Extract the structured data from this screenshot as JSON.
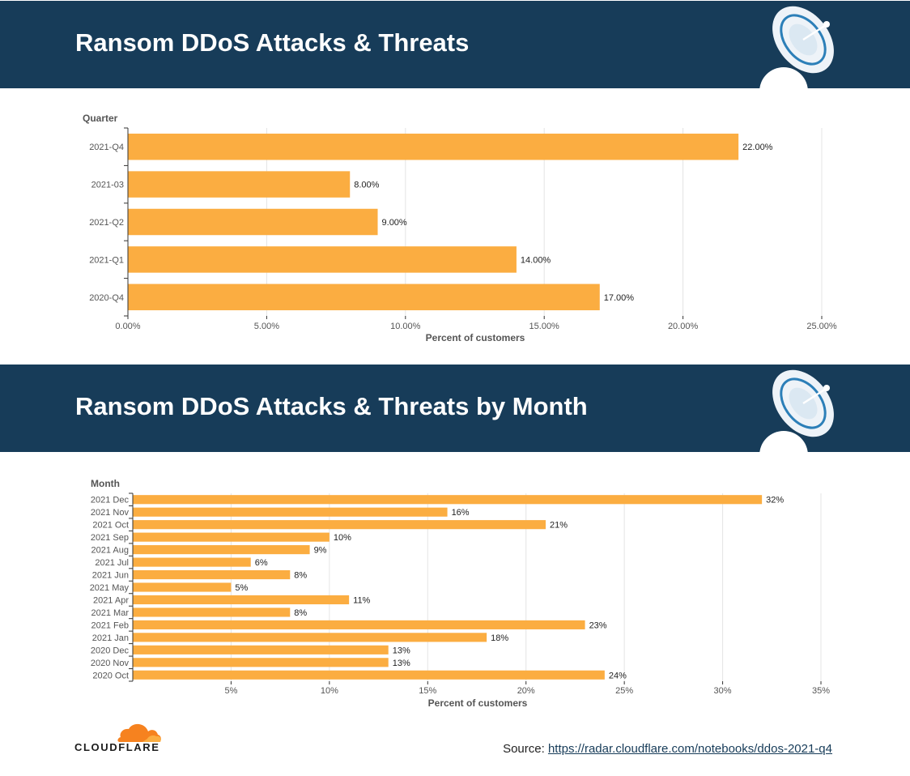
{
  "banners": {
    "top_title": "Ransom DDoS Attacks & Threats",
    "bottom_title": "Ransom DDoS Attacks & Threats by Month"
  },
  "colors": {
    "banner": "#173c59",
    "bar": "#fbad41",
    "accent": "#f6821f"
  },
  "chart_data": [
    {
      "type": "bar",
      "orientation": "horizontal",
      "title": "Ransom DDoS Attacks & Threats",
      "ylabel": "Quarter",
      "xlabel": "Percent of customers",
      "categories": [
        "2021-Q4",
        "2021-03",
        "2021-Q2",
        "2021-Q1",
        "2020-Q4"
      ],
      "values": [
        22,
        8,
        9,
        14,
        17
      ],
      "value_labels": [
        "22.00%",
        "8.00%",
        "9.00%",
        "14.00%",
        "17.00%"
      ],
      "xticks": [
        0,
        5,
        10,
        15,
        20,
        25
      ],
      "xtick_labels": [
        "0.00%",
        "5.00%",
        "10.00%",
        "15.00%",
        "20.00%",
        "25.00%"
      ],
      "xlim": [
        0,
        25
      ],
      "grid": true
    },
    {
      "type": "bar",
      "orientation": "horizontal",
      "title": "Ransom DDoS Attacks & Threats by Month",
      "ylabel": "Month",
      "xlabel": "Percent of customers",
      "categories": [
        "2021 Dec",
        "2021 Nov",
        "2021 Oct",
        "2021 Sep",
        "2021 Aug",
        "2021 Jul",
        "2021 Jun",
        "2021 May",
        "2021 Apr",
        "2021 Mar",
        "2021 Feb",
        "2021 Jan",
        "2020 Dec",
        "2020 Nov",
        "2020 Oct"
      ],
      "values": [
        32,
        16,
        21,
        10,
        9,
        6,
        8,
        5,
        11,
        8,
        23,
        18,
        13,
        13,
        24
      ],
      "value_labels": [
        "32%",
        "16%",
        "21%",
        "10%",
        "9%",
        "6%",
        "8%",
        "5%",
        "11%",
        "8%",
        "23%",
        "18%",
        "13%",
        "13%",
        "24%"
      ],
      "xticks": [
        5,
        10,
        15,
        20,
        25,
        30,
        35
      ],
      "xtick_labels": [
        "5%",
        "10%",
        "15%",
        "20%",
        "25%",
        "30%",
        "35%"
      ],
      "xlim": [
        0,
        35
      ],
      "grid": true
    }
  ],
  "footer": {
    "logo_text": "CLOUDFLARE",
    "source_label": "Source:",
    "source_link": "https://radar.cloudflare.com/notebooks/ddos-2021-q4"
  }
}
